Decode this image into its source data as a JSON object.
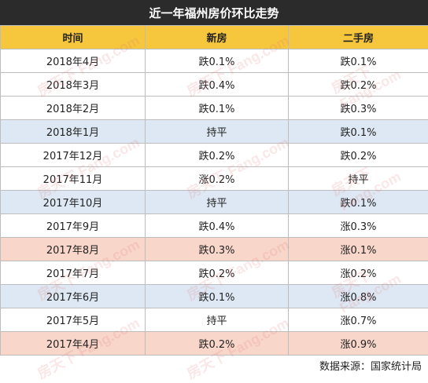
{
  "title": "近一年福州房价环比走势",
  "columns": [
    "时间",
    "新房",
    "二手房"
  ],
  "rows": [
    {
      "date": "2018年4月",
      "new": "跌0.1%",
      "used": "跌0.1%",
      "tone": "white"
    },
    {
      "date": "2018年3月",
      "new": "跌0.4%",
      "used": "跌0.2%",
      "tone": "white"
    },
    {
      "date": "2018年2月",
      "new": "跌0.1%",
      "used": "跌0.3%",
      "tone": "white"
    },
    {
      "date": "2018年1月",
      "new": "持平",
      "used": "跌0.1%",
      "tone": "blue"
    },
    {
      "date": "2017年12月",
      "new": "跌0.2%",
      "used": "跌0.2%",
      "tone": "white"
    },
    {
      "date": "2017年11月",
      "new": "涨0.2%",
      "used": "持平",
      "tone": "white"
    },
    {
      "date": "2017年10月",
      "new": "持平",
      "used": "跌0.1%",
      "tone": "blue"
    },
    {
      "date": "2017年9月",
      "new": "跌0.4%",
      "used": "涨0.3%",
      "tone": "white"
    },
    {
      "date": "2017年8月",
      "new": "跌0.3%",
      "used": "涨0.1%",
      "tone": "pink"
    },
    {
      "date": "2017年7月",
      "new": "跌0.2%",
      "used": "涨0.2%",
      "tone": "white"
    },
    {
      "date": "2017年6月",
      "new": "跌0.1%",
      "used": "涨0.8%",
      "tone": "blue"
    },
    {
      "date": "2017年5月",
      "new": "持平",
      "used": "涨0.7%",
      "tone": "white"
    },
    {
      "date": "2017年4月",
      "new": "跌0.2%",
      "used": "涨0.9%",
      "tone": "pink"
    }
  ],
  "source": "数据来源：国家统计局",
  "watermark": "房天下 Fang.com",
  "colors": {
    "title_bg": "#2b2b2b",
    "header_bg": "#f6c63c",
    "row_blue": "#dde8f4",
    "row_pink": "#f8d6c9"
  }
}
